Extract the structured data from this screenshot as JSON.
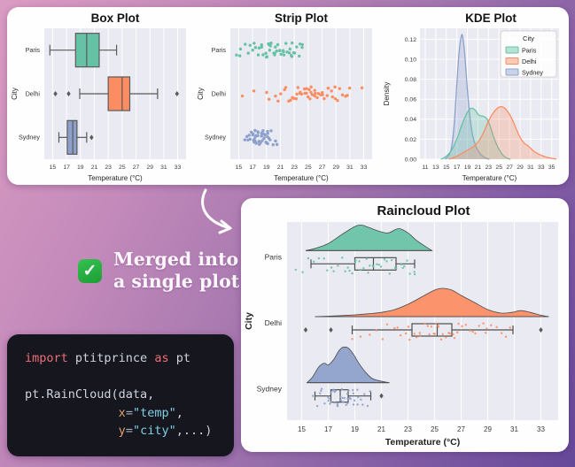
{
  "palette": {
    "Paris": "#66c2a5",
    "Delhi": "#fc8d62",
    "Sydney": "#8da0cb"
  },
  "style": {
    "axes_bg": "#eaeaf2",
    "grid": "#ffffff",
    "edge": "#595959",
    "tick_color": "#3a3a3a",
    "title_color": "#141414",
    "legend_bg": "#ffffff",
    "legend_border": "#cccccc"
  },
  "annotation": {
    "check_glyph": "✓",
    "line1": "Merged into",
    "line2": "a single plot"
  },
  "code": {
    "bg": "#15161e",
    "token_colors": {
      "kw": "#ef6d77",
      "fg": "#ced3de",
      "param": "#e0a06c",
      "op": "#a8b0bd",
      "str": "#7fd0e6"
    },
    "lines": [
      [
        {
          "t": "import",
          "c": "kw"
        },
        {
          "t": " ptitprince ",
          "c": "fg"
        },
        {
          "t": "as",
          "c": "kw"
        },
        {
          "t": " pt",
          "c": "fg"
        }
      ],
      [],
      [
        {
          "t": "pt.RainCloud(data,",
          "c": "fg"
        }
      ],
      [
        {
          "t": "             ",
          "c": "fg"
        },
        {
          "t": "x",
          "c": "param"
        },
        {
          "t": "=",
          "c": "op"
        },
        {
          "t": "\"temp\"",
          "c": "str"
        },
        {
          "t": ",",
          "c": "fg"
        }
      ],
      [
        {
          "t": "             ",
          "c": "fg"
        },
        {
          "t": "y",
          "c": "param"
        },
        {
          "t": "=",
          "c": "op"
        },
        {
          "t": "\"city\"",
          "c": "str"
        },
        {
          "t": ",...)",
          "c": "fg"
        }
      ]
    ]
  },
  "chart_data": [
    {
      "type": "box",
      "title": "Box Plot",
      "xlabel": "Temperature (°C)",
      "ylabel": "City",
      "categories": [
        "Paris",
        "Delhi",
        "Sydney"
      ],
      "x_ticks": [
        15,
        17,
        19,
        21,
        23,
        25,
        27,
        29,
        31,
        33
      ],
      "xlim": [
        13.8,
        34.2
      ],
      "grid": "x",
      "stats": [
        {
          "city": "Paris",
          "whislo": 14.6,
          "q1": 18.3,
          "med": 19.9,
          "q3": 21.7,
          "whishi": 24.2,
          "outliers": []
        },
        {
          "city": "Delhi",
          "whislo": 18.9,
          "q1": 23.0,
          "med": 25.0,
          "q3": 26.1,
          "whishi": 30.1,
          "outliers": [
            15.4,
            17.3,
            32.9
          ]
        },
        {
          "city": "Sydney",
          "whislo": 15.9,
          "q1": 17.1,
          "med": 17.9,
          "q3": 18.5,
          "whishi": 19.9,
          "outliers": [
            20.6
          ]
        }
      ]
    },
    {
      "type": "strip",
      "title": "Strip Plot",
      "xlabel": "Temperature (°C)",
      "ylabel": "City",
      "categories": [
        "Paris",
        "Delhi",
        "Sydney"
      ],
      "x_ticks": [
        15,
        17,
        19,
        21,
        23,
        25,
        27,
        29,
        31,
        33
      ],
      "xlim": [
        13.8,
        34.2
      ],
      "grid": "x",
      "points": {
        "Paris": [
          14.6,
          15.1,
          15.4,
          16.0,
          16.3,
          16.6,
          16.9,
          17.2,
          17.5,
          17.8,
          18.0,
          18.2,
          18.4,
          18.6,
          18.8,
          19.0,
          19.1,
          19.3,
          19.5,
          19.6,
          19.8,
          20.0,
          20.1,
          20.3,
          20.5,
          20.6,
          20.8,
          21.0,
          21.2,
          21.4,
          21.6,
          21.8,
          22.0,
          22.2,
          22.4,
          22.6,
          22.8,
          23.0,
          23.2,
          23.4,
          23.6,
          23.8,
          24.0,
          24.2,
          20.4,
          19.4,
          21.5,
          22.5
        ],
        "Delhi": [
          15.4,
          17.3,
          18.9,
          19.4,
          20.2,
          20.7,
          21.1,
          21.5,
          21.9,
          22.2,
          22.5,
          22.8,
          23.0,
          23.2,
          23.4,
          23.6,
          23.8,
          24.0,
          24.2,
          24.4,
          24.6,
          24.8,
          25.0,
          25.1,
          25.3,
          25.5,
          25.7,
          25.9,
          26.1,
          26.3,
          26.5,
          26.7,
          26.9,
          27.1,
          27.4,
          27.7,
          28.0,
          28.3,
          28.6,
          29.0,
          29.3,
          29.6,
          30.0,
          30.3,
          30.7,
          31.1,
          28.9,
          27.9,
          26.0,
          25.4,
          24.9,
          32.9
        ],
        "Sydney": [
          15.9,
          16.2,
          16.4,
          16.6,
          16.7,
          16.9,
          17.0,
          17.1,
          17.2,
          17.3,
          17.4,
          17.5,
          17.6,
          17.7,
          17.8,
          17.9,
          18.0,
          18.1,
          18.2,
          18.3,
          18.4,
          18.5,
          18.6,
          18.7,
          18.8,
          18.9,
          19.0,
          19.1,
          19.2,
          19.4,
          19.6,
          19.8,
          20.0,
          20.2,
          20.6,
          17.45,
          17.85,
          18.15,
          17.65,
          18.45,
          16.5,
          17.15,
          18.95,
          19.3,
          18.55,
          17.25
        ]
      }
    },
    {
      "type": "kde",
      "title": "KDE Plot",
      "xlabel": "Temperature (°C)",
      "ylabel": "Density",
      "x_ticks": [
        11,
        13,
        15,
        17,
        19,
        21,
        23,
        25,
        27,
        29,
        31,
        33,
        35
      ],
      "xlim": [
        10.0,
        36.4
      ],
      "y_ticks": [
        0.0,
        0.02,
        0.04,
        0.06,
        0.08,
        0.1,
        0.12
      ],
      "ylim": [
        0,
        0.131
      ],
      "grid": "both",
      "legend": {
        "title": "City",
        "entries": [
          "Paris",
          "Delhi",
          "Sydney"
        ],
        "position": "upper right"
      },
      "curves": {
        "Paris": [
          [
            14,
            0
          ],
          [
            15,
            0.003
          ],
          [
            16,
            0.009
          ],
          [
            17,
            0.02
          ],
          [
            18,
            0.035
          ],
          [
            19,
            0.047
          ],
          [
            19.8,
            0.051
          ],
          [
            20.5,
            0.049
          ],
          [
            21.2,
            0.044
          ],
          [
            22,
            0.043
          ],
          [
            22.6,
            0.041
          ],
          [
            23.2,
            0.035
          ],
          [
            24,
            0.022
          ],
          [
            24.8,
            0.012
          ],
          [
            25.6,
            0.005
          ],
          [
            26.5,
            0.001
          ],
          [
            27.2,
            0
          ]
        ],
        "Delhi": [
          [
            15.5,
            0
          ],
          [
            17,
            0.003
          ],
          [
            18,
            0.006
          ],
          [
            19,
            0.009
          ],
          [
            20,
            0.012
          ],
          [
            21,
            0.017
          ],
          [
            22,
            0.026
          ],
          [
            23,
            0.038
          ],
          [
            24,
            0.047
          ],
          [
            25,
            0.052
          ],
          [
            25.8,
            0.052
          ],
          [
            26.6,
            0.048
          ],
          [
            27.5,
            0.04
          ],
          [
            28.3,
            0.03
          ],
          [
            29,
            0.022
          ],
          [
            29.8,
            0.016
          ],
          [
            30.6,
            0.013
          ],
          [
            31.4,
            0.009
          ],
          [
            32.2,
            0.006
          ],
          [
            33,
            0.004
          ],
          [
            34,
            0.002
          ],
          [
            35,
            0.001
          ],
          [
            35.9,
            0
          ]
        ],
        "Sydney": [
          [
            14.8,
            0
          ],
          [
            15.5,
            0.004
          ],
          [
            16,
            0.012
          ],
          [
            16.5,
            0.035
          ],
          [
            17,
            0.075
          ],
          [
            17.4,
            0.105
          ],
          [
            17.8,
            0.122
          ],
          [
            18.1,
            0.123
          ],
          [
            18.5,
            0.105
          ],
          [
            19,
            0.07
          ],
          [
            19.5,
            0.042
          ],
          [
            20,
            0.024
          ],
          [
            20.7,
            0.012
          ],
          [
            21.5,
            0.005
          ],
          [
            22.5,
            0.001
          ],
          [
            23.2,
            0
          ]
        ]
      }
    },
    {
      "type": "raincloud",
      "title": "Raincloud Plot",
      "xlabel": "Temperature (°C)",
      "ylabel": "City",
      "categories": [
        "Paris",
        "Delhi",
        "Sydney"
      ],
      "x_ticks": [
        15,
        17,
        19,
        21,
        23,
        25,
        27,
        29,
        31,
        33
      ],
      "xlim": [
        13.9,
        34.3
      ],
      "grid": "x",
      "stats": [
        {
          "city": "Paris",
          "whislo": 15.7,
          "q1": 19.0,
          "med": 20.4,
          "q3": 22.1,
          "whishi": 23.5,
          "outliers": []
        },
        {
          "city": "Delhi",
          "whislo": 18.8,
          "q1": 23.3,
          "med": 25.2,
          "q3": 26.3,
          "whishi": 30.9,
          "outliers": [
            15.3,
            17.2,
            33.0
          ]
        },
        {
          "city": "Sydney",
          "whislo": 16.0,
          "q1": 17.2,
          "med": 17.9,
          "q3": 18.5,
          "whishi": 20.2,
          "outliers": [
            21.0
          ]
        }
      ],
      "violins": {
        "Paris": [
          [
            15.3,
            0
          ],
          [
            16,
            0.06
          ],
          [
            17,
            0.2
          ],
          [
            18,
            0.45
          ],
          [
            19,
            0.68
          ],
          [
            19.5,
            0.72
          ],
          [
            20,
            0.66
          ],
          [
            20.8,
            0.55
          ],
          [
            21.5,
            0.5
          ],
          [
            22.3,
            0.62
          ],
          [
            23,
            0.5
          ],
          [
            23.6,
            0.3
          ],
          [
            24.3,
            0.12
          ],
          [
            24.8,
            0
          ]
        ],
        "Delhi": [
          [
            16,
            0
          ],
          [
            17.5,
            0.02
          ],
          [
            19,
            0.05
          ],
          [
            20,
            0.08
          ],
          [
            21,
            0.12
          ],
          [
            22,
            0.2
          ],
          [
            23,
            0.35
          ],
          [
            24,
            0.55
          ],
          [
            25,
            0.75
          ],
          [
            25.6,
            0.8
          ],
          [
            26.3,
            0.75
          ],
          [
            27,
            0.6
          ],
          [
            28,
            0.4
          ],
          [
            29,
            0.2
          ],
          [
            30,
            0.1
          ],
          [
            30.8,
            0.12
          ],
          [
            31.5,
            0.17
          ],
          [
            32.2,
            0.12
          ],
          [
            33,
            0.04
          ],
          [
            33.6,
            0
          ]
        ],
        "Sydney": [
          [
            15.4,
            0
          ],
          [
            15.8,
            0.15
          ],
          [
            16.3,
            0.45
          ],
          [
            16.7,
            0.55
          ],
          [
            17.0,
            0.5
          ],
          [
            17.4,
            0.65
          ],
          [
            17.8,
            0.9
          ],
          [
            18.1,
            1.0
          ],
          [
            18.5,
            0.98
          ],
          [
            18.9,
            0.8
          ],
          [
            19.3,
            0.55
          ],
          [
            19.8,
            0.3
          ],
          [
            20.3,
            0.12
          ],
          [
            21,
            0.04
          ],
          [
            21.6,
            0
          ]
        ]
      },
      "points": {
        "Paris": [
          14.6,
          15.1,
          15.4,
          16.0,
          16.3,
          16.6,
          16.9,
          17.2,
          17.5,
          17.8,
          18.0,
          18.2,
          18.4,
          18.6,
          18.8,
          19.0,
          19.1,
          19.3,
          19.5,
          19.6,
          19.8,
          20.0,
          20.1,
          20.3,
          20.5,
          20.6,
          20.8,
          21.0,
          21.2,
          21.4,
          21.6,
          21.8,
          22.0,
          22.2,
          22.4,
          22.6,
          22.8,
          23.0,
          23.2,
          23.4,
          23.6
        ],
        "Delhi": [
          18.9,
          19.4,
          20.2,
          20.7,
          21.1,
          21.5,
          21.9,
          22.2,
          22.5,
          22.8,
          23.0,
          23.2,
          23.4,
          23.6,
          23.8,
          24.0,
          24.2,
          24.4,
          24.6,
          24.8,
          25.0,
          25.1,
          25.3,
          25.5,
          25.7,
          25.9,
          26.1,
          26.3,
          26.5,
          26.7,
          26.9,
          27.1,
          27.4,
          27.7,
          28.0,
          28.3,
          28.6,
          29.0,
          29.3,
          29.6,
          30.0,
          30.3,
          30.7,
          28.9,
          27.9,
          26.0,
          25.4,
          24.9
        ],
        "Sydney": [
          15.9,
          16.2,
          16.4,
          16.6,
          16.7,
          16.9,
          17.0,
          17.1,
          17.2,
          17.3,
          17.4,
          17.5,
          17.6,
          17.7,
          17.8,
          17.9,
          18.0,
          18.1,
          18.2,
          18.3,
          18.4,
          18.5,
          18.6,
          18.7,
          18.8,
          18.9,
          19.0,
          19.1,
          19.2,
          19.4,
          19.6,
          19.8,
          20.0,
          20.2,
          17.45,
          17.85,
          18.15,
          17.65,
          18.45,
          16.5,
          17.15,
          18.95,
          19.3,
          18.55,
          17.25
        ]
      }
    }
  ]
}
